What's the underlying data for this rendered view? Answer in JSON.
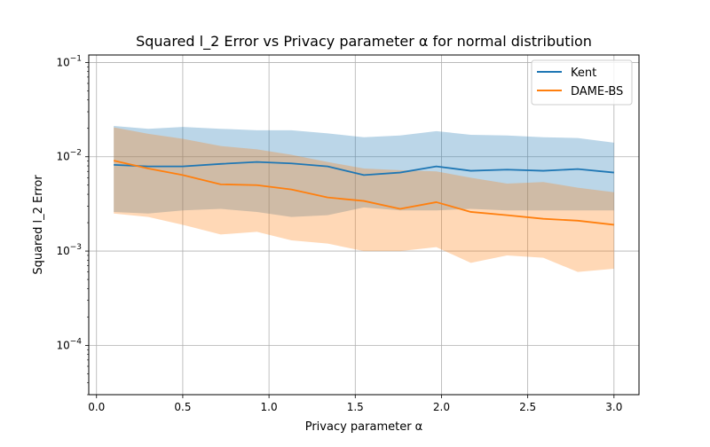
{
  "chart_data": {
    "type": "line",
    "title": "Squared l_2 Error vs Privacy parameter α for normal distribution",
    "xlabel": "Privacy parameter α",
    "ylabel": "Squared l_2 Error",
    "xlim": [
      -0.045,
      3.145
    ],
    "ylim": [
      3e-05,
      0.12
    ],
    "yscale": "log",
    "grid": true,
    "legend_position": "top-right",
    "x_ticks": [
      0.0,
      0.5,
      1.0,
      1.5,
      2.0,
      2.5,
      3.0
    ],
    "x_tick_labels": [
      "0.0",
      "0.5",
      "1.0",
      "1.5",
      "2.0",
      "2.5",
      "3.0"
    ],
    "y_ticks": [
      0.0001,
      0.001,
      0.01,
      0.1
    ],
    "y_tick_labels": [
      {
        "base": "10",
        "exp": "−4"
      },
      {
        "base": "10",
        "exp": "−3"
      },
      {
        "base": "10",
        "exp": "−2"
      },
      {
        "base": "10",
        "exp": "−1"
      }
    ],
    "x": [
      0.1,
      0.3,
      0.5,
      0.72,
      0.93,
      1.13,
      1.34,
      1.55,
      1.76,
      1.97,
      2.17,
      2.38,
      2.59,
      2.79,
      3.0
    ],
    "series": [
      {
        "name": "Kent",
        "color": "#1f77b4",
        "band_color": "#1f77b4",
        "band_opacity": 0.3,
        "values": [
          0.0082,
          0.0079,
          0.0079,
          0.0084,
          0.0088,
          0.0085,
          0.0079,
          0.0064,
          0.0068,
          0.0079,
          0.0071,
          0.0073,
          0.0071,
          0.0074,
          0.0068
        ],
        "lower": [
          0.0026,
          0.0025,
          0.0027,
          0.0028,
          0.0026,
          0.0023,
          0.0024,
          0.0029,
          0.0027,
          0.0027,
          0.0028,
          0.0027,
          0.0027,
          0.0027,
          0.0027
        ],
        "upper": [
          0.0212,
          0.0198,
          0.0207,
          0.0198,
          0.0191,
          0.0191,
          0.0177,
          0.0161,
          0.0168,
          0.0187,
          0.0171,
          0.0168,
          0.0161,
          0.0158,
          0.0141
        ]
      },
      {
        "name": "DAME-BS",
        "color": "#ff7f0e",
        "band_color": "#ff7f0e",
        "band_opacity": 0.3,
        "values": [
          0.0091,
          0.0075,
          0.0064,
          0.0051,
          0.005,
          0.0045,
          0.0037,
          0.0034,
          0.0028,
          0.0033,
          0.0026,
          0.0024,
          0.0022,
          0.0021,
          0.0019
        ],
        "lower": [
          0.0025,
          0.0023,
          0.0019,
          0.0015,
          0.0016,
          0.0013,
          0.0012,
          0.001,
          0.001,
          0.0011,
          0.00075,
          0.0009,
          0.00085,
          0.0006,
          0.00065
        ],
        "upper": [
          0.0205,
          0.0175,
          0.0155,
          0.013,
          0.012,
          0.0105,
          0.0088,
          0.0075,
          0.0072,
          0.007,
          0.006,
          0.0052,
          0.0054,
          0.0047,
          0.0042
        ]
      }
    ]
  }
}
